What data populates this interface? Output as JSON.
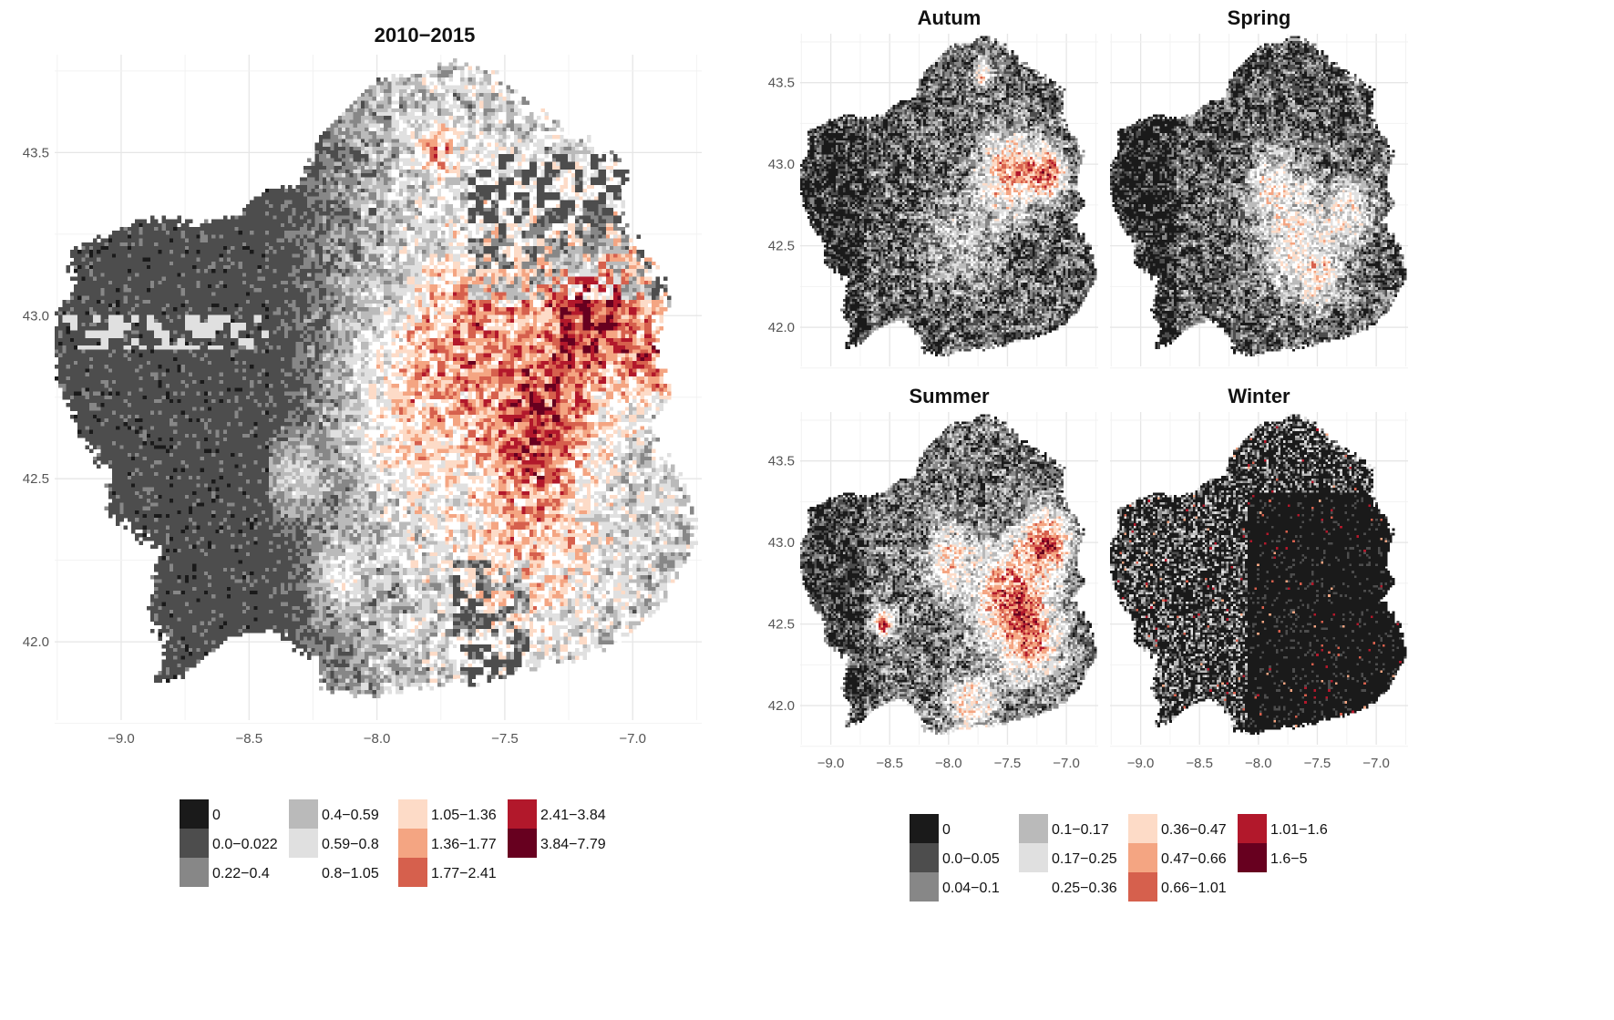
{
  "chart_data": [
    {
      "type": "heatmap",
      "title": "2010−2015",
      "x_ticks": [
        "−9.0",
        "−8.5",
        "−8.0",
        "−7.5",
        "−7.0"
      ],
      "y_ticks": [
        "42.0",
        "42.5",
        "43.0",
        "43.5"
      ],
      "xlim": [
        -9.26,
        -6.73
      ],
      "ylim": [
        41.76,
        43.8
      ],
      "grid": true,
      "legend_position": "bottom",
      "legend": [
        {
          "label": "0",
          "color": "#1a1a1a"
        },
        {
          "label": "0.0−0.022",
          "color": "#4d4d4d"
        },
        {
          "label": "0.22−0.4",
          "color": "#878787"
        },
        {
          "label": "0.4−0.59",
          "color": "#bababa"
        },
        {
          "label": "0.59−0.8",
          "color": "#e0e0e0"
        },
        {
          "label": "0.8−1.05",
          "color": "#ffffff"
        },
        {
          "label": "1.05−1.36",
          "color": "#fddbc7"
        },
        {
          "label": "1.36−1.77",
          "color": "#f4a582"
        },
        {
          "label": "1.77−2.41",
          "color": "#d6604d"
        },
        {
          "label": "2.41−3.84",
          "color": "#b2182b"
        },
        {
          "label": "3.84−7.79",
          "color": "#67001f"
        }
      ]
    },
    {
      "type": "heatmap",
      "facets": [
        "Autum",
        "Spring",
        "Summer",
        "Winter"
      ],
      "x_ticks": [
        "−9.0",
        "−8.5",
        "−8.0",
        "−7.5",
        "−7.0"
      ],
      "y_ticks": [
        "42.0",
        "42.5",
        "43.0",
        "43.5"
      ],
      "xlim": [
        -9.26,
        -6.73
      ],
      "ylim": [
        41.76,
        43.8
      ],
      "grid": true,
      "legend_position": "bottom",
      "legend": [
        {
          "label": "0",
          "color": "#1a1a1a"
        },
        {
          "label": "0.0−0.05",
          "color": "#4d4d4d"
        },
        {
          "label": "0.04−0.1",
          "color": "#878787"
        },
        {
          "label": "0.1−0.17",
          "color": "#bababa"
        },
        {
          "label": "0.17−0.25",
          "color": "#e0e0e0"
        },
        {
          "label": "0.25−0.36",
          "color": "#ffffff"
        },
        {
          "label": "0.36−0.47",
          "color": "#fddbc7"
        },
        {
          "label": "0.47−0.66",
          "color": "#f4a582"
        },
        {
          "label": "0.66−1.01",
          "color": "#d6604d"
        },
        {
          "label": "1.01−1.6",
          "color": "#b2182b"
        },
        {
          "label": "1.6−5",
          "color": "#67001f"
        }
      ]
    }
  ]
}
